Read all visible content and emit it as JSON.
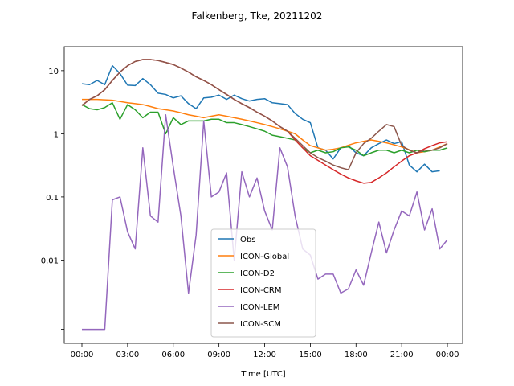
{
  "chart_data": {
    "type": "line",
    "title": "Falkenberg, Tke, 20211202",
    "xlabel": "Time [UTC]",
    "log_y": true,
    "legend_loc": "lower center",
    "x": [
      0,
      0.5,
      1,
      1.5,
      2,
      2.5,
      3,
      3.5,
      4,
      4.5,
      5,
      5.5,
      6,
      6.5,
      7,
      7.5,
      8,
      8.5,
      9,
      9.5,
      10,
      10.5,
      11,
      11.5,
      12,
      12.5,
      13,
      13.5,
      14,
      14.5,
      15,
      15.5,
      16,
      16.5,
      17,
      17.5,
      18,
      18.5,
      19,
      19.5,
      20,
      20.5,
      21,
      21.5,
      22,
      22.5,
      23,
      23.5,
      24
    ],
    "xlim": [
      -1.16,
      25.0
    ],
    "xticks": [
      {
        "value": 0,
        "label": "00:00"
      },
      {
        "value": 3,
        "label": "03:00"
      },
      {
        "value": 6,
        "label": "06:00"
      },
      {
        "value": 9,
        "label": "09:00"
      },
      {
        "value": 12,
        "label": "12:00"
      },
      {
        "value": 15,
        "label": "15:00"
      },
      {
        "value": 18,
        "label": "18:00"
      },
      {
        "value": 21,
        "label": "21:00"
      },
      {
        "value": 24,
        "label": "00:00"
      }
    ],
    "ylim": [
      0.00048,
      24
    ],
    "yticks": [
      {
        "value": 0.0008,
        "label": null
      },
      0.01,
      0.1,
      1,
      10
    ],
    "series": [
      {
        "name": "Obs",
        "color": "#1f77b4",
        "values": [
          6.2,
          6.0,
          7.0,
          6.0,
          12,
          9,
          5.9,
          5.8,
          7.5,
          6.0,
          4.4,
          4.2,
          3.7,
          4.0,
          3.0,
          2.5,
          3.7,
          3.8,
          4.1,
          3.5,
          4.1,
          3.6,
          3.3,
          3.5,
          3.6,
          3.1,
          3.0,
          2.9,
          2.1,
          1.7,
          1.5,
          0.6,
          0.55,
          0.4,
          0.6,
          0.65,
          0.5,
          0.45,
          0.6,
          0.7,
          0.8,
          0.7,
          0.75,
          0.32,
          0.25,
          0.33,
          0.25,
          0.26,
          null
        ]
      },
      {
        "name": "ICON-Global",
        "color": "#ff7f0e",
        "values": [
          3.5,
          3.5,
          3.5,
          3.45,
          3.4,
          3.25,
          3.1,
          3.0,
          2.9,
          2.7,
          2.5,
          2.4,
          2.3,
          2.15,
          2.0,
          1.9,
          1.8,
          1.9,
          2.0,
          1.9,
          1.8,
          1.7,
          1.6,
          1.5,
          1.4,
          1.3,
          1.2,
          1.1,
          1.0,
          0.8,
          0.65,
          0.6,
          0.55,
          0.57,
          0.6,
          0.66,
          0.72,
          0.76,
          0.8,
          0.76,
          0.72,
          0.67,
          0.62,
          0.56,
          0.5,
          0.52,
          0.55,
          0.62,
          0.7
        ]
      },
      {
        "name": "ICON-D2",
        "color": "#2ca02c",
        "values": [
          2.9,
          2.5,
          2.4,
          2.6,
          3.1,
          1.7,
          2.9,
          2.4,
          1.8,
          2.2,
          2.2,
          1.0,
          1.8,
          1.4,
          1.6,
          1.6,
          1.6,
          1.7,
          1.7,
          1.5,
          1.5,
          1.4,
          1.3,
          1.2,
          1.1,
          0.95,
          0.9,
          0.85,
          0.8,
          0.6,
          0.5,
          0.55,
          0.5,
          0.52,
          0.6,
          0.62,
          0.55,
          0.45,
          0.5,
          0.55,
          0.55,
          0.5,
          0.55,
          0.5,
          0.55,
          0.52,
          0.55,
          0.55,
          0.6
        ]
      },
      {
        "name": "ICON-CRM",
        "color": "#d62728",
        "values": [
          2.8,
          3.5,
          4.0,
          5,
          7,
          9.5,
          12,
          14,
          15,
          15,
          14.5,
          13.5,
          12.5,
          11,
          9.5,
          8,
          7,
          6,
          5,
          4.2,
          3.5,
          3.0,
          2.6,
          2.2,
          1.9,
          1.6,
          1.3,
          1.1,
          0.8,
          0.6,
          0.45,
          0.38,
          0.32,
          0.27,
          0.23,
          0.2,
          0.18,
          0.165,
          0.17,
          0.2,
          0.24,
          0.3,
          0.37,
          0.45,
          0.5,
          0.58,
          0.65,
          0.72,
          0.75
        ]
      },
      {
        "name": "ICON-LEM",
        "color": "#9467bd",
        "values": [
          0.0008,
          0.0008,
          0.0008,
          0.0008,
          0.09,
          0.1,
          0.028,
          0.015,
          0.6,
          0.05,
          0.04,
          2.0,
          0.3,
          0.05,
          0.003,
          0.025,
          1.6,
          0.1,
          0.12,
          0.24,
          0.01,
          0.25,
          0.1,
          0.2,
          0.06,
          0.03,
          0.6,
          0.3,
          0.05,
          0.015,
          0.012,
          0.005,
          0.006,
          0.006,
          0.003,
          0.0035,
          0.007,
          0.004,
          0.013,
          0.04,
          0.013,
          0.03,
          0.06,
          0.05,
          0.12,
          0.03,
          0.065,
          0.015,
          0.021
        ]
      },
      {
        "name": "ICON-SCM",
        "color": "#8c564b",
        "values": [
          2.8,
          3.5,
          4.0,
          5,
          7,
          9.5,
          12,
          14,
          15,
          15,
          14.5,
          13.5,
          12.5,
          11,
          9.5,
          8,
          7,
          6,
          5,
          4.2,
          3.5,
          3.0,
          2.6,
          2.2,
          1.9,
          1.6,
          1.3,
          1.1,
          0.85,
          0.65,
          0.5,
          0.42,
          0.37,
          0.32,
          0.29,
          0.27,
          0.5,
          0.7,
          0.85,
          1.1,
          1.4,
          1.3,
          0.65,
          0.55,
          0.5,
          0.55,
          0.55,
          0.6,
          0.7
        ]
      }
    ]
  }
}
